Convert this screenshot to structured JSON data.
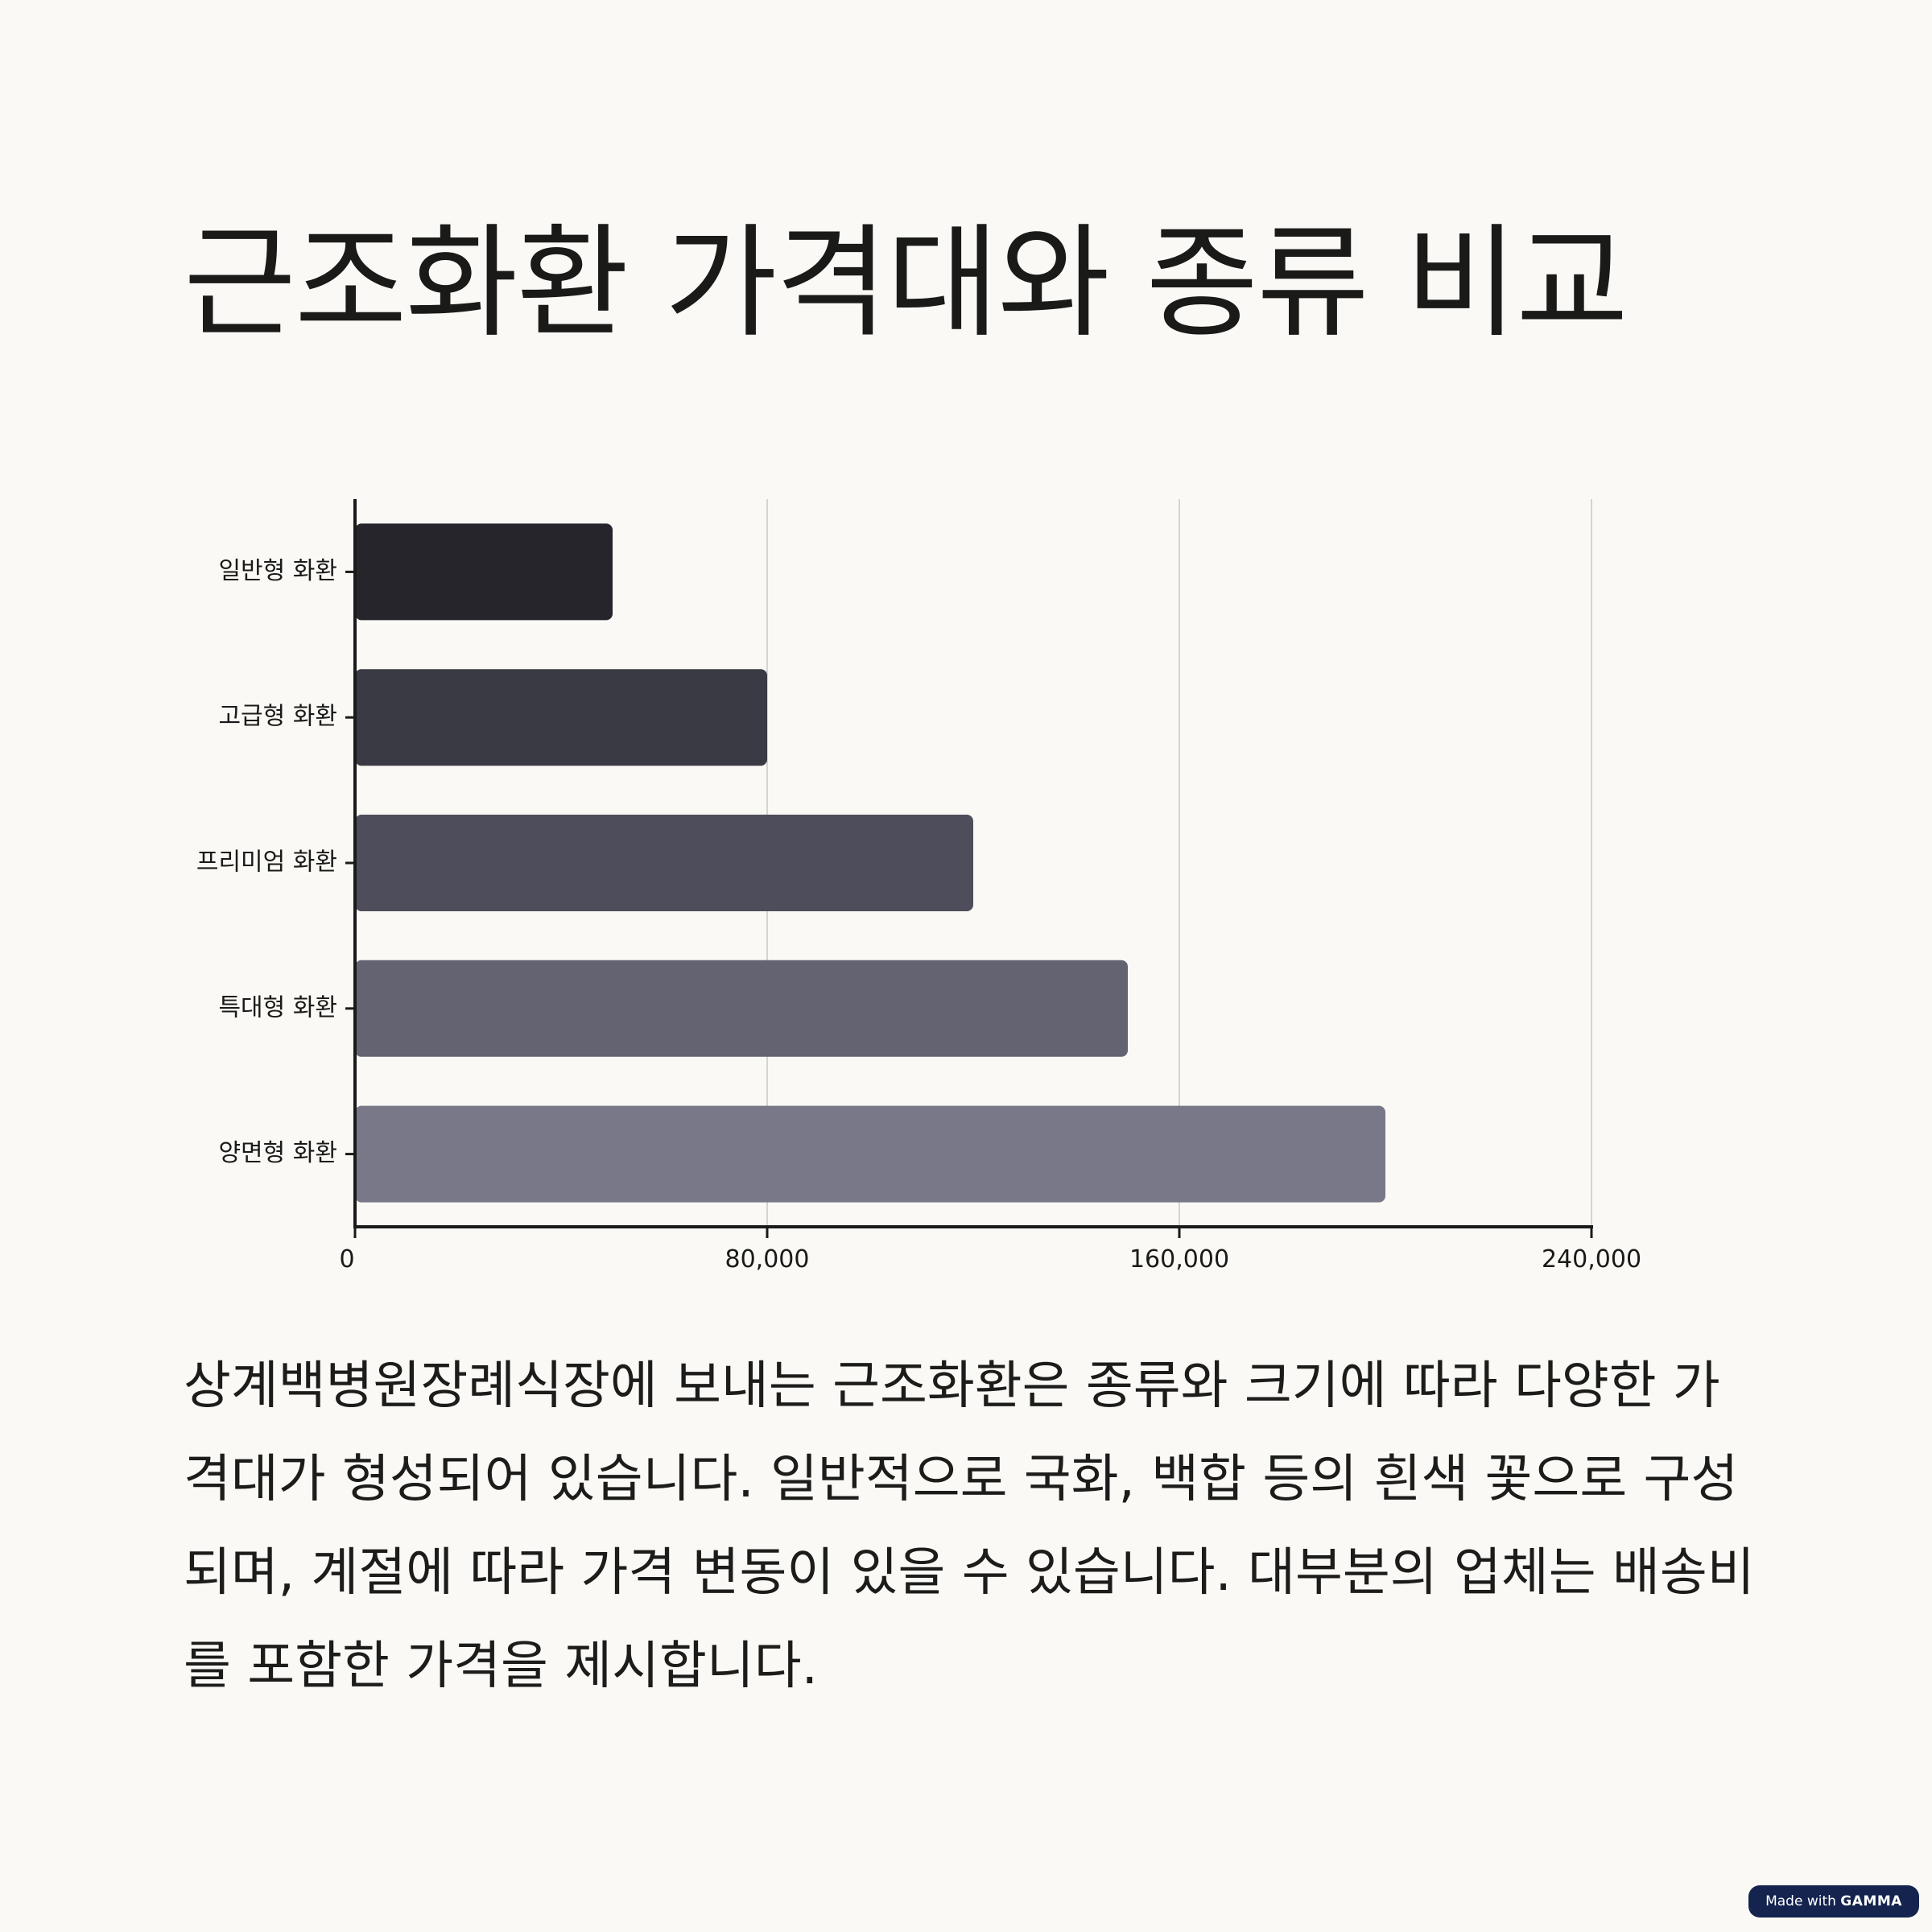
{
  "title": "근조화환 가격대와 종류 비교",
  "chart_data": {
    "type": "bar",
    "orientation": "horizontal",
    "categories": [
      "일반형 화환",
      "고급형 화환",
      "프리미엄 화환",
      "특대형 화환",
      "양면형 화환"
    ],
    "values": [
      50000,
      80000,
      120000,
      150000,
      200000
    ],
    "colors": [
      "#25252b",
      "#3a3a45",
      "#4d4d5b",
      "#636372",
      "#787889"
    ],
    "xlim": [
      0,
      240000
    ],
    "xticks": [
      0,
      80000,
      160000,
      240000
    ],
    "xtick_labels": [
      "0",
      "80,000",
      "160,000",
      "240,000"
    ],
    "grid": true
  },
  "body_text": "상계백병원장례식장에 보내는 근조화환은 종류와 크기에 따라 다양한 가격대가 형성되어 있습니다. 일반적으로 국화, 백합 등의 흰색 꽃으로 구성되며, 계절에 따라 가격 변동이 있을 수 있습니다. 대부분의 업체는 배송비를 포함한 가격을 제시합니다.",
  "badge": {
    "prefix": "Made with ",
    "brand": "GAMMA"
  }
}
